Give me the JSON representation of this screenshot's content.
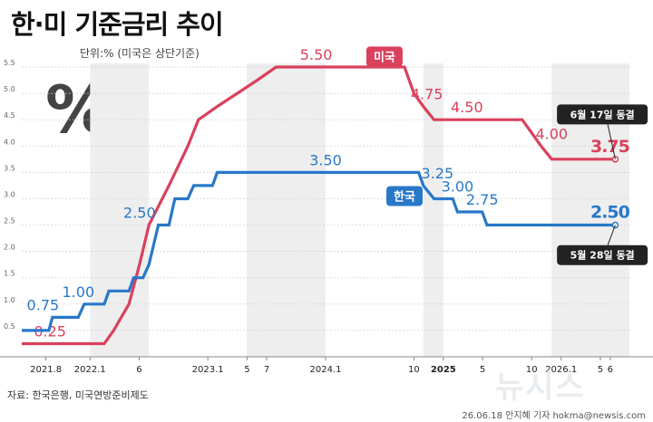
{
  "title": "한·미 기준금리 추이",
  "unit_note": "단위:% (미국은 상단기준)",
  "source": "자료: 한국은행, 미국연방준비제도",
  "byline": "26.06.18 안지혜 기자 hokma@newsis.com",
  "logo_text": "뉴시스",
  "colors": {
    "us": "#d9415c",
    "korea": "#2878c8",
    "grid": "#cfcfcf",
    "band": "#eeeeee",
    "callout": "#222222"
  },
  "chart_data": {
    "type": "line",
    "ylim": [
      0,
      5.5
    ],
    "yticks": [
      0.5,
      1.0,
      1.5,
      2.0,
      2.5,
      3.0,
      3.5,
      4.0,
      4.5,
      5.0,
      5.5
    ],
    "ytick_labels": [
      "0.5",
      "1.0",
      "1.5",
      "2.0",
      "2.5",
      "3.0",
      "3.5",
      "4.0",
      "4.5",
      "5.0",
      "5.5"
    ],
    "xlim": [
      2021.42,
      2026.58
    ],
    "xticks": [
      {
        "x": 2021.625,
        "label": "2021.8"
      },
      {
        "x": 2022.0,
        "label": "2022.1"
      },
      {
        "x": 2022.417,
        "label": "6"
      },
      {
        "x": 2023.0,
        "label": "2023.1"
      },
      {
        "x": 2023.333,
        "label": "5"
      },
      {
        "x": 2023.5,
        "label": "7"
      },
      {
        "x": 2024.0,
        "label": "2024.1"
      },
      {
        "x": 2024.75,
        "label": "10"
      },
      {
        "x": 2025.0,
        "label": "2025"
      },
      {
        "x": 2025.333,
        "label": "5"
      },
      {
        "x": 2025.75,
        "label": "10"
      },
      {
        "x": 2026.0,
        "label": "2026.1"
      },
      {
        "x": 2026.333,
        "label": "5"
      },
      {
        "x": 2026.417,
        "label": "6"
      }
    ],
    "series": [
      {
        "name": "미국",
        "color": "#d9415c",
        "points": [
          [
            2021.42,
            0.25
          ],
          [
            2022.12,
            0.25
          ],
          [
            2022.2,
            0.5
          ],
          [
            2022.33,
            1.0
          ],
          [
            2022.42,
            1.75
          ],
          [
            2022.5,
            2.5
          ],
          [
            2022.67,
            3.25
          ],
          [
            2022.83,
            4.0
          ],
          [
            2022.92,
            4.5
          ],
          [
            2023.08,
            4.75
          ],
          [
            2023.25,
            5.0
          ],
          [
            2023.42,
            5.25
          ],
          [
            2023.58,
            5.5
          ],
          [
            2024.67,
            5.5
          ],
          [
            2024.75,
            5.0
          ],
          [
            2024.83,
            4.75
          ],
          [
            2024.92,
            4.5
          ],
          [
            2025.67,
            4.5
          ],
          [
            2025.75,
            4.25
          ],
          [
            2025.83,
            4.0
          ],
          [
            2025.92,
            3.75
          ],
          [
            2026.46,
            3.75
          ]
        ],
        "labels": [
          {
            "x": 2021.66,
            "y": 0.25,
            "text": "0.25"
          },
          {
            "x": 2023.92,
            "y": 5.5,
            "text": "5.50"
          },
          {
            "x": 2024.86,
            "y": 4.75,
            "text": "4.75"
          },
          {
            "x": 2025.2,
            "y": 4.5,
            "text": "4.50"
          },
          {
            "x": 2025.92,
            "y": 4.0,
            "text": "4.00"
          },
          {
            "x": 2026.46,
            "y": 3.75,
            "text": "3.75",
            "emph": true
          }
        ],
        "legend": {
          "x": 2024.5,
          "y": 5.7,
          "text": "미국"
        },
        "callout": {
          "x": 2026.35,
          "y": 4.6,
          "text": "6월 17일 동결"
        }
      },
      {
        "name": "한국",
        "color": "#2878c8",
        "points": [
          [
            2021.42,
            0.5
          ],
          [
            2021.65,
            0.5
          ],
          [
            2021.68,
            0.75
          ],
          [
            2021.9,
            0.75
          ],
          [
            2021.95,
            1.0
          ],
          [
            2022.12,
            1.0
          ],
          [
            2022.16,
            1.25
          ],
          [
            2022.33,
            1.25
          ],
          [
            2022.37,
            1.5
          ],
          [
            2022.45,
            1.5
          ],
          [
            2022.5,
            1.75
          ],
          [
            2022.58,
            2.5
          ],
          [
            2022.67,
            2.5
          ],
          [
            2022.72,
            3.0
          ],
          [
            2022.83,
            3.0
          ],
          [
            2022.88,
            3.25
          ],
          [
            2023.04,
            3.25
          ],
          [
            2023.08,
            3.5
          ],
          [
            2024.79,
            3.5
          ],
          [
            2024.83,
            3.25
          ],
          [
            2024.92,
            3.0
          ],
          [
            2025.08,
            3.0
          ],
          [
            2025.12,
            2.75
          ],
          [
            2025.33,
            2.75
          ],
          [
            2025.37,
            2.5
          ],
          [
            2026.46,
            2.5
          ]
        ],
        "labels": [
          {
            "x": 2021.6,
            "y": 0.75,
            "text": "0.75"
          },
          {
            "x": 2021.9,
            "y": 1.0,
            "text": "1.00"
          },
          {
            "x": 2022.42,
            "y": 2.5,
            "text": "2.50"
          },
          {
            "x": 2024.0,
            "y": 3.5,
            "text": "3.50"
          },
          {
            "x": 2024.95,
            "y": 3.25,
            "text": "3.25"
          },
          {
            "x": 2025.12,
            "y": 3.0,
            "text": "3.00"
          },
          {
            "x": 2025.33,
            "y": 2.75,
            "text": "2.75"
          },
          {
            "x": 2026.46,
            "y": 2.5,
            "text": "2.50",
            "emph": true
          }
        ],
        "legend": {
          "x": 2024.67,
          "y": 3.05,
          "text": "한국"
        },
        "callout": {
          "x": 2026.35,
          "y": 1.93,
          "text": "5월 28일 동결"
        }
      }
    ],
    "bands": [
      [
        2022.0,
        2022.5
      ],
      [
        2023.33,
        2024.0
      ],
      [
        2024.83,
        2025.0
      ],
      [
        2025.92,
        2026.58
      ]
    ],
    "grid": true
  }
}
